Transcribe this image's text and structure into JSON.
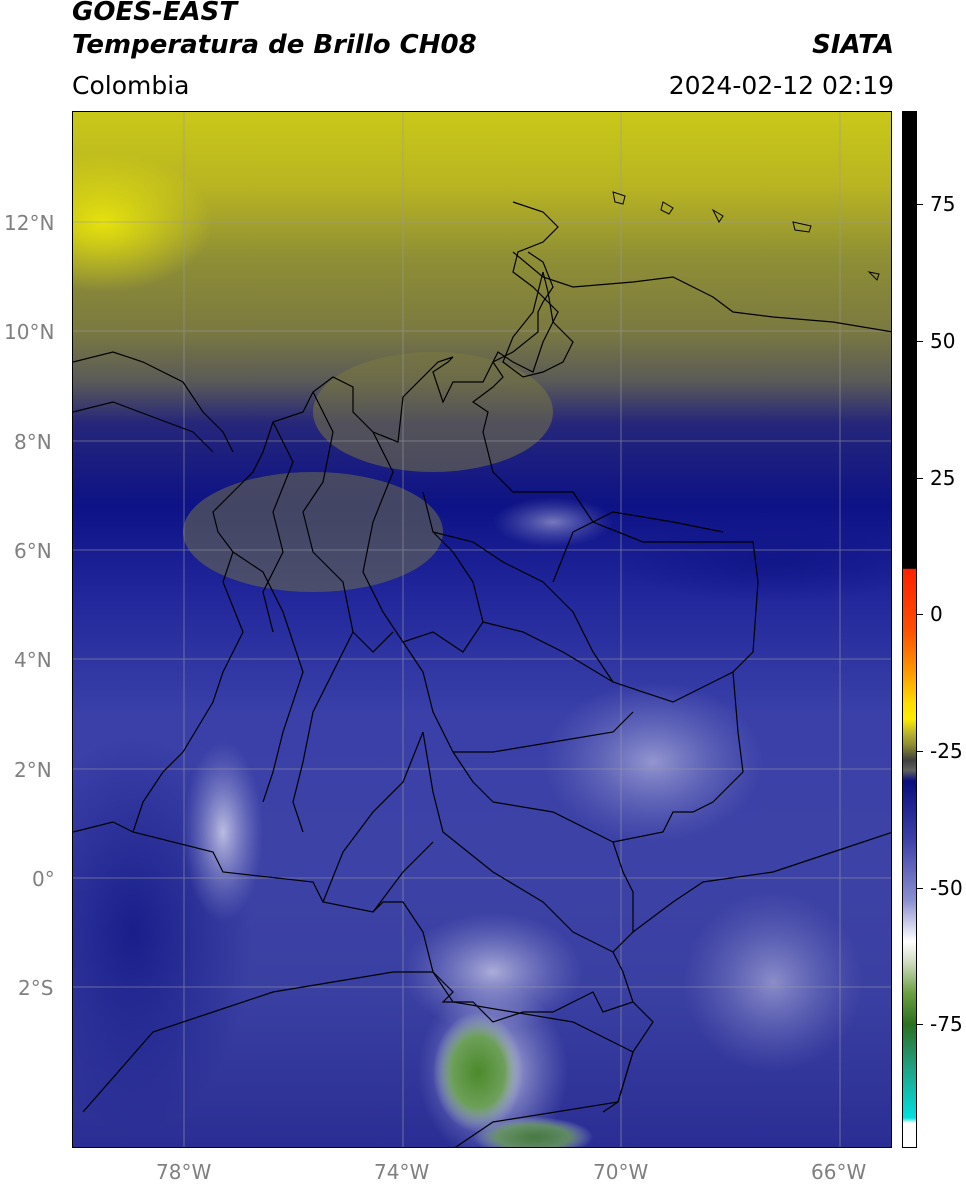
{
  "header": {
    "satellite": "GOES-EAST",
    "product": "Temperatura de Brillo CH08",
    "region": "Colombia",
    "organization": "SIATA",
    "datetime": "2024-02-12 02:19"
  },
  "map": {
    "lat_labels": [
      "12°N",
      "10°N",
      "8°N",
      "6°N",
      "4°N",
      "2°N",
      "0°",
      "2°S"
    ],
    "lon_labels": [
      "78°W",
      "74°W",
      "70°W",
      "66°W"
    ],
    "extent": {
      "lon_min": -80,
      "lon_max": -65,
      "lat_min": -5,
      "lat_max": 14
    }
  },
  "colorbar": {
    "ticks": [
      "75",
      "50",
      "25",
      "0",
      "-25",
      "-50",
      "-75"
    ],
    "colors": {
      "black": "#000000",
      "red": "#ff2000",
      "orange": "#ff9900",
      "yellow": "#ffee00",
      "olive": "#8f8f30",
      "dark_gray": "#404040",
      "navy": "#0a0f80",
      "lavender": "#8a8fd0",
      "white": "#ffffff",
      "green": "#3a8a20",
      "cyan": "#00e0e0"
    }
  }
}
